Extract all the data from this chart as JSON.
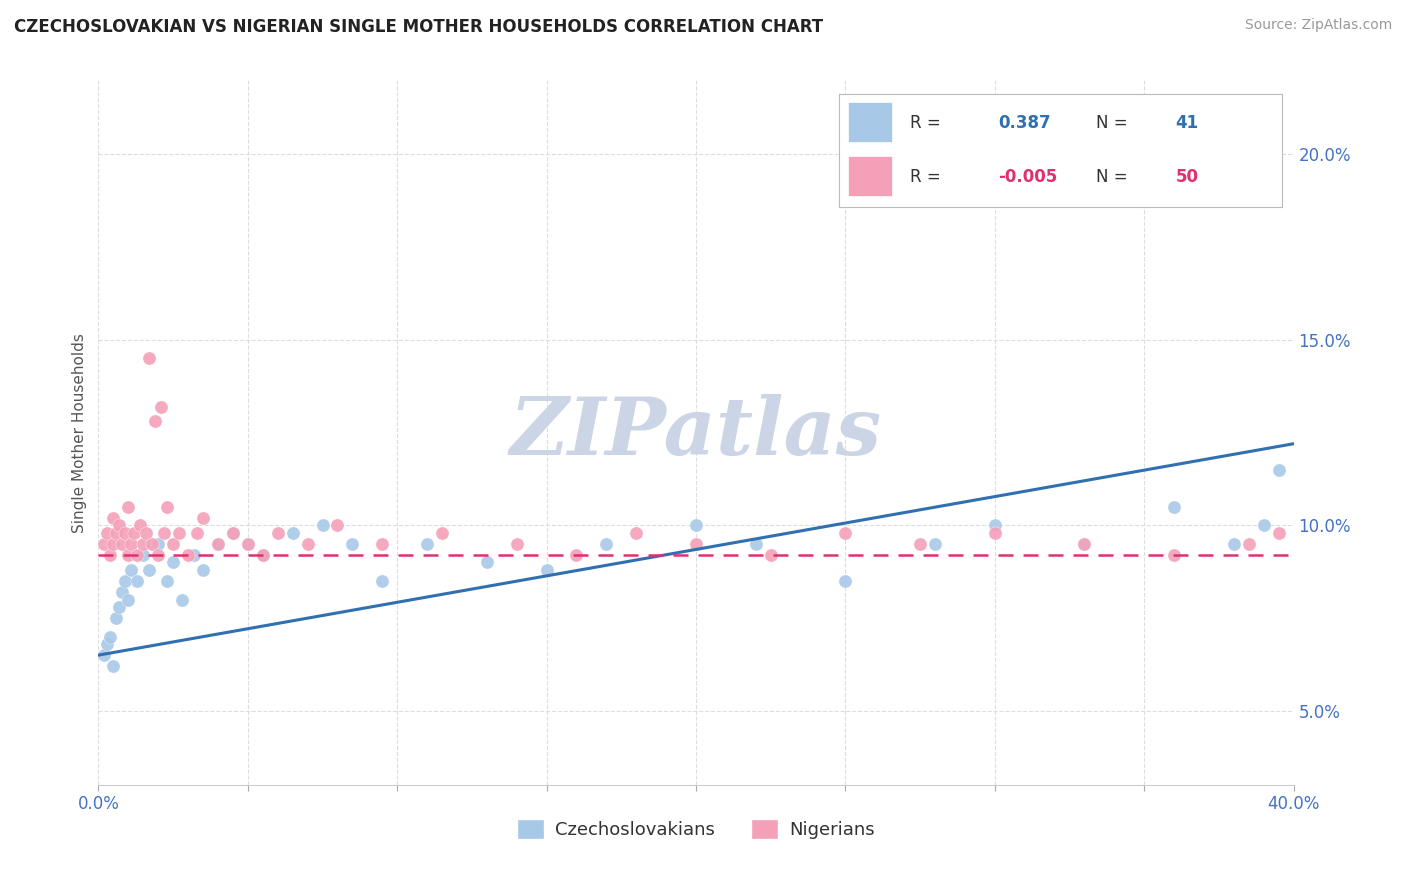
{
  "title": "CZECHOSLOVAKIAN VS NIGERIAN SINGLE MOTHER HOUSEHOLDS CORRELATION CHART",
  "source": "Source: ZipAtlas.com",
  "ylabel": "Single Mother Households",
  "legend_label1": "Czechoslovakians",
  "legend_label2": "Nigerians",
  "R1": 0.387,
  "N1": 41,
  "R2": -0.005,
  "N2": 50,
  "color1": "#a8c8e8",
  "color2": "#f4a0b8",
  "trendline1_color": "#3070b0",
  "trendline2_color": "#e03070",
  "xlim": [
    0.0,
    40.0
  ],
  "ylim": [
    3.0,
    22.0
  ],
  "xticks": [
    0.0,
    5.0,
    10.0,
    15.0,
    20.0,
    25.0,
    30.0,
    35.0,
    40.0
  ],
  "yticks": [
    5.0,
    10.0,
    15.0,
    20.0
  ],
  "background_color": "#ffffff",
  "grid_color": "#dddddd",
  "watermark": "ZIPatlas",
  "watermark_color": "#ccd5e5",
  "czecho_x": [
    0.2,
    0.3,
    0.4,
    0.5,
    0.6,
    0.7,
    0.8,
    0.9,
    1.0,
    1.1,
    1.3,
    1.5,
    1.7,
    2.0,
    2.3,
    2.5,
    2.8,
    3.2,
    3.5,
    4.0,
    4.5,
    5.0,
    5.5,
    6.5,
    7.5,
    8.5,
    9.5,
    11.0,
    13.0,
    15.0,
    17.0,
    20.0,
    22.0,
    25.0,
    28.0,
    30.0,
    33.0,
    36.0,
    38.0,
    39.0,
    39.5
  ],
  "czecho_y": [
    6.5,
    6.8,
    7.0,
    6.2,
    7.5,
    7.8,
    8.2,
    8.5,
    8.0,
    8.8,
    8.5,
    9.2,
    8.8,
    9.5,
    8.5,
    9.0,
    8.0,
    9.2,
    8.8,
    9.5,
    9.8,
    9.5,
    9.2,
    9.8,
    10.0,
    9.5,
    8.5,
    9.5,
    9.0,
    8.8,
    9.5,
    10.0,
    9.5,
    8.5,
    9.5,
    10.0,
    9.5,
    10.5,
    9.5,
    10.0,
    11.5
  ],
  "nigerian_x": [
    0.2,
    0.3,
    0.4,
    0.5,
    0.5,
    0.6,
    0.7,
    0.8,
    0.9,
    1.0,
    1.0,
    1.1,
    1.2,
    1.3,
    1.4,
    1.5,
    1.6,
    1.7,
    1.8,
    1.9,
    2.0,
    2.1,
    2.2,
    2.3,
    2.5,
    2.7,
    3.0,
    3.3,
    3.5,
    4.0,
    4.5,
    5.0,
    5.5,
    6.0,
    7.0,
    8.0,
    9.5,
    11.5,
    14.0,
    16.0,
    18.0,
    20.0,
    22.5,
    25.0,
    27.5,
    30.0,
    33.0,
    36.0,
    38.5,
    39.5
  ],
  "nigerian_y": [
    9.5,
    9.8,
    9.2,
    9.5,
    10.2,
    9.8,
    10.0,
    9.5,
    9.8,
    9.2,
    10.5,
    9.5,
    9.8,
    9.2,
    10.0,
    9.5,
    9.8,
    14.5,
    9.5,
    12.8,
    9.2,
    13.2,
    9.8,
    10.5,
    9.5,
    9.8,
    9.2,
    9.8,
    10.2,
    9.5,
    9.8,
    9.5,
    9.2,
    9.8,
    9.5,
    10.0,
    9.5,
    9.8,
    9.5,
    9.2,
    9.8,
    9.5,
    9.2,
    9.8,
    9.5,
    9.8,
    9.5,
    9.2,
    9.5,
    9.8
  ],
  "trendline1_start_y": 6.5,
  "trendline1_end_y": 12.2,
  "trendline2_y": 9.2
}
